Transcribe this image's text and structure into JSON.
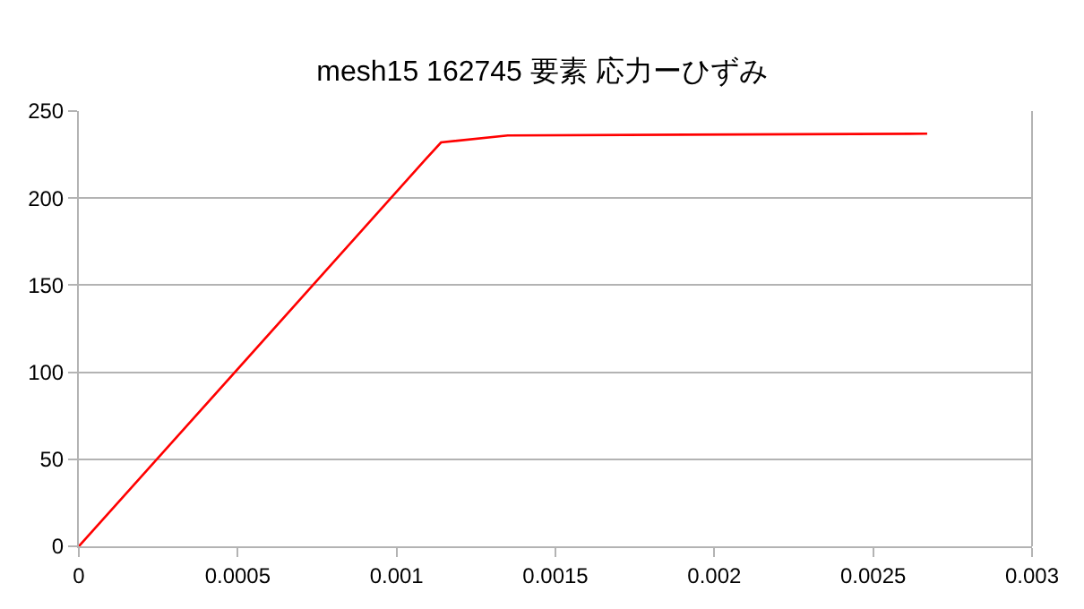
{
  "chart_data": {
    "type": "line",
    "title": "mesh15 162745 要素 応力ーひずみ",
    "x": [
      0,
      0.00109,
      0.00114,
      0.00135,
      0.00267
    ],
    "series": [
      {
        "color": "#ff0000",
        "values": [
          0,
          222,
          232,
          236,
          237
        ]
      }
    ],
    "xlim": [
      0,
      0.003
    ],
    "xticks": [
      0,
      0.0005,
      0.001,
      0.0015,
      0.002,
      0.0025,
      0.003
    ],
    "ylim": [
      0,
      250
    ],
    "yticks": [
      0,
      50,
      100,
      150,
      200,
      250
    ],
    "grid": "y",
    "marker": "none",
    "line_style": "solid"
  }
}
